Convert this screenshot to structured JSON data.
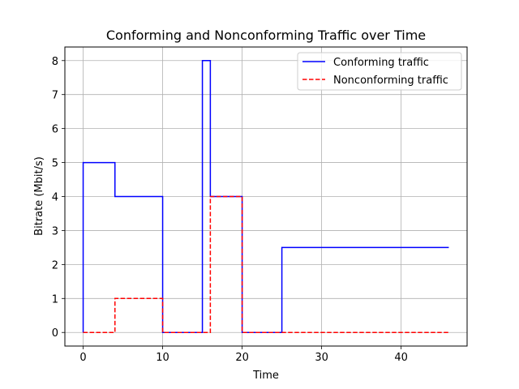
{
  "chart_data": {
    "type": "line",
    "title": "Conforming and Nonconforming Traffic over Time",
    "xlabel": "Time",
    "ylabel": "Bitrate (Mbit/s)",
    "xlim": [
      -2.3,
      48.3
    ],
    "ylim": [
      -0.4,
      8.4
    ],
    "xticks": [
      0,
      10,
      20,
      30,
      40
    ],
    "yticks": [
      0,
      1,
      2,
      3,
      4,
      5,
      6,
      7,
      8
    ],
    "grid": true,
    "legend_position": "upper right",
    "series": [
      {
        "name": "Conforming traffic",
        "color": "#0000ff",
        "style": "solid",
        "x": [
          0,
          0,
          4,
          4,
          10,
          10,
          15,
          15,
          16,
          16,
          20,
          20,
          25,
          25,
          46
        ],
        "y": [
          0,
          5,
          5,
          4,
          4,
          0,
          0,
          8,
          8,
          4,
          4,
          0,
          0,
          2.5,
          2.5
        ]
      },
      {
        "name": "Nonconforming traffic",
        "color": "#ff0000",
        "style": "dashed",
        "x": [
          0,
          4,
          4,
          10,
          10,
          16,
          16,
          20,
          20,
          46
        ],
        "y": [
          0,
          0,
          1,
          1,
          0,
          0,
          4,
          4,
          0,
          0
        ]
      }
    ]
  }
}
